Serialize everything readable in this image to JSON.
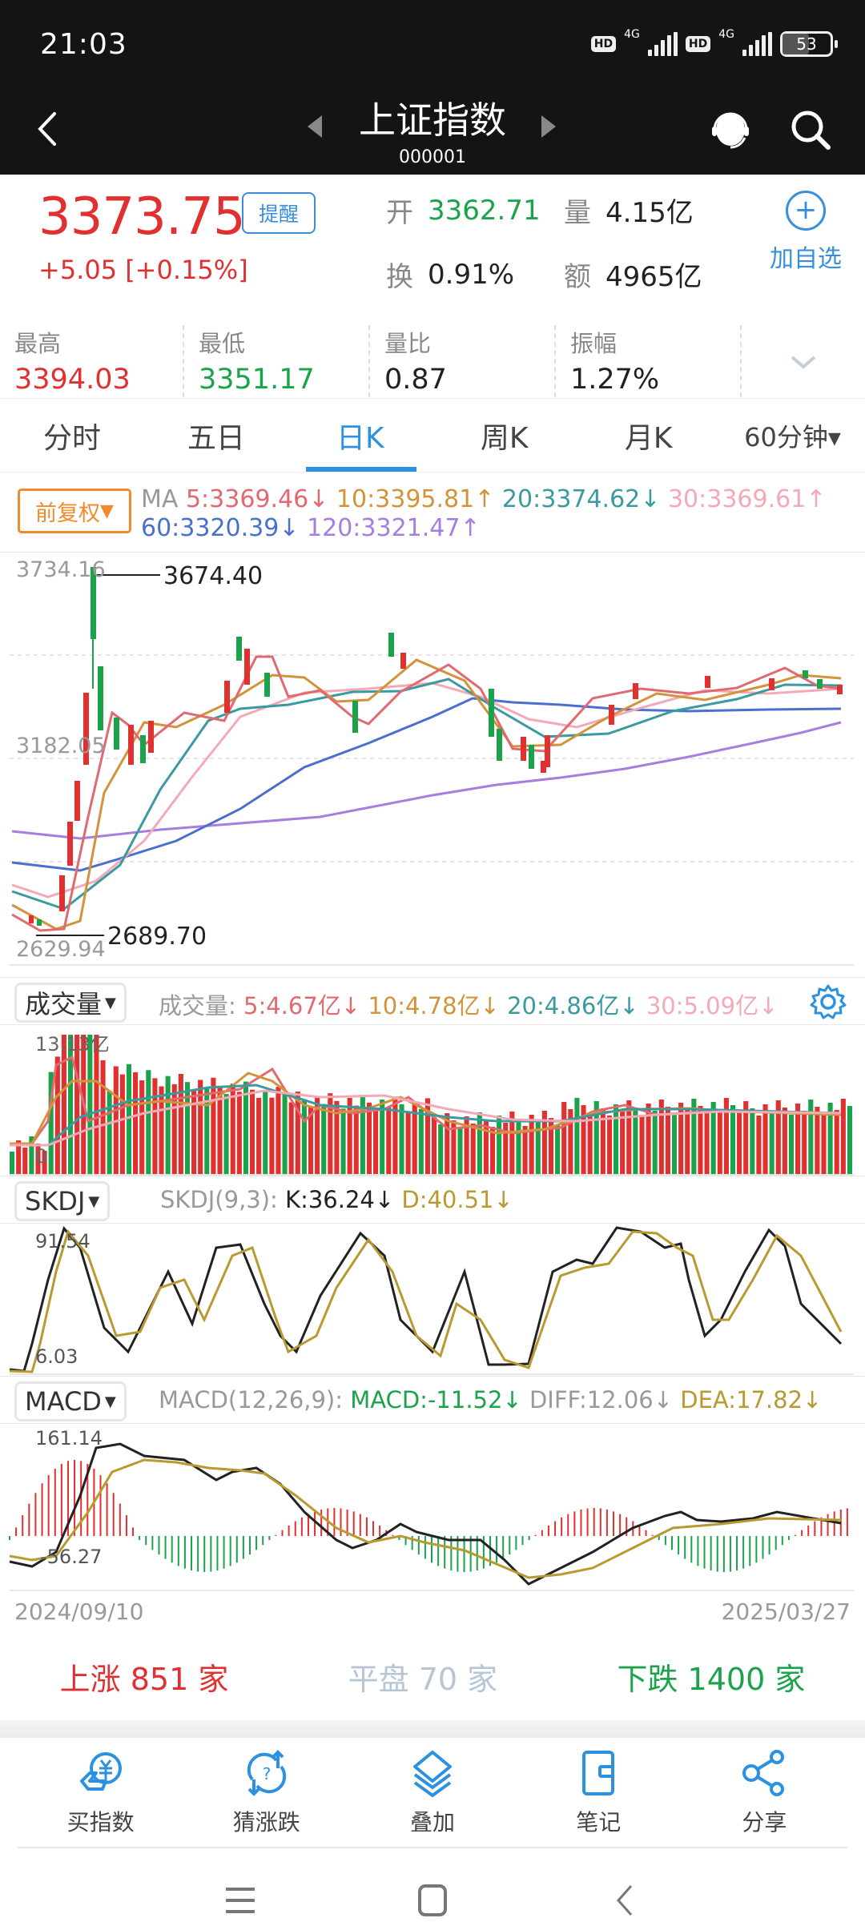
{
  "status_bar": {
    "time": "21:03",
    "sim1": "4G",
    "sim2": "4G",
    "hd1": "HD",
    "hd2": "HD",
    "battery": "53"
  },
  "header": {
    "title": "上证指数",
    "code": "000001",
    "back_icon": "chevron-left-icon",
    "service_icon": "customer-service-icon",
    "search_icon": "search-icon"
  },
  "quote": {
    "price": "3373.75",
    "change": "+5.05 [+0.15%]",
    "alert_label": "提醒",
    "open_label": "开",
    "open_value": "3362.71",
    "volume_label": "量",
    "volume_value": "4.15亿",
    "turnover_label": "换",
    "turnover_value": "0.91%",
    "amount_label": "额",
    "amount_value": "4965亿",
    "add_fav_label": "加自选"
  },
  "stats": [
    {
      "label": "最高",
      "value": "3394.03",
      "color": "#e03030"
    },
    {
      "label": "最低",
      "value": "3351.17",
      "color": "#1aa34a"
    },
    {
      "label": "量比",
      "value": "0.87",
      "color": "#222"
    },
    {
      "label": "振幅",
      "value": "1.27%",
      "color": "#222"
    }
  ],
  "tabs": [
    {
      "label": "分时"
    },
    {
      "label": "五日"
    },
    {
      "label": "日K",
      "active": true
    },
    {
      "label": "周K"
    },
    {
      "label": "月K"
    },
    {
      "label": "60分钟▾"
    }
  ],
  "ma": {
    "adjust_label": "前复权",
    "prefix": "MA",
    "items": [
      {
        "text": "5:3369.46↓",
        "color": "#e06a70"
      },
      {
        "text": "10:3395.81↑",
        "color": "#d4923a"
      },
      {
        "text": "20:3374.62↓",
        "color": "#3a9aa0"
      },
      {
        "text": "30:3369.61↑",
        "color": "#f4a9b6"
      },
      {
        "text": "60:3320.39↓",
        "color": "#4a6fcf"
      },
      {
        "text": "120:3321.47↑",
        "color": "#a77ee0"
      }
    ]
  },
  "main_chart": {
    "y_top": "3734.16",
    "y_mid": "3182.05",
    "y_bottom": "2629.94",
    "max_annot": "3674.40",
    "min_annot": "2689.70"
  },
  "volume": {
    "selector": "成交量",
    "prefix": "成交量:",
    "items": [
      {
        "text": "5:4.67亿↓",
        "color": "#e06a70"
      },
      {
        "text": "10:4.78亿↓",
        "color": "#d4923a"
      },
      {
        "text": "20:4.86亿↓",
        "color": "#3a9aa0"
      },
      {
        "text": "30:5.09亿↓",
        "color": "#f4a9b6"
      }
    ],
    "y_top": "13.13亿",
    "y_bottom": "0",
    "settings_icon": "gear-icon"
  },
  "skdj": {
    "selector": "SKDJ",
    "prefix": "SKDJ(9,3):",
    "k": "K:36.24↓",
    "d": "D:40.51↓",
    "y_top": "91.54",
    "y_bottom": "6.03"
  },
  "macd": {
    "selector": "MACD",
    "prefix": "MACD(12,26,9):",
    "macd": "MACD:-11.52↓",
    "diff": "DIFF:12.06↓",
    "dea": "DEA:17.82↓",
    "y_top": "161.14",
    "y_bottom": "-56.27"
  },
  "dates": {
    "start": "2024/09/10",
    "end": "2025/03/27"
  },
  "breadth": {
    "up": "上涨 851 家",
    "flat": "平盘 70 家",
    "down": "下跌 1400 家"
  },
  "actions": [
    {
      "label": "买指数",
      "icon": "buy-index-icon"
    },
    {
      "label": "猜涨跌",
      "icon": "guess-icon"
    },
    {
      "label": "叠加",
      "icon": "layers-icon"
    },
    {
      "label": "笔记",
      "icon": "notebook-icon"
    },
    {
      "label": "分享",
      "icon": "share-icon"
    }
  ],
  "colors": {
    "up": "#e03030",
    "down": "#1aa34a",
    "accent": "#2b91e0",
    "k_line": "#222222",
    "d_line": "#b89a30"
  },
  "chart_data": [
    {
      "type": "candlestick",
      "title": "上证指数 日K",
      "x_range": [
        "2024/09/10",
        "2025/03/27"
      ],
      "ylim": [
        2629.94,
        3734.16
      ],
      "y_ticks": [
        3734.16,
        3182.05,
        2629.94
      ],
      "annotations": [
        {
          "label": "max",
          "value": 3674.4
        },
        {
          "label": "min",
          "value": 2689.7
        }
      ],
      "series": [
        {
          "name": "MA5",
          "last": 3369.46
        },
        {
          "name": "MA10",
          "last": 3395.81
        },
        {
          "name": "MA20",
          "last": 3374.62
        },
        {
          "name": "MA30",
          "last": 3369.61
        },
        {
          "name": "MA60",
          "last": 3320.39
        },
        {
          "name": "MA120",
          "last": 3321.47
        }
      ]
    },
    {
      "type": "bar",
      "title": "成交量",
      "ylim": [
        0,
        13.13
      ],
      "unit": "亿",
      "series": [
        {
          "name": "MA5",
          "last": 4.67
        },
        {
          "name": "MA10",
          "last": 4.78
        },
        {
          "name": "MA20",
          "last": 4.86
        },
        {
          "name": "MA30",
          "last": 5.09
        }
      ]
    },
    {
      "type": "line",
      "title": "SKDJ(9,3)",
      "ylim": [
        6.03,
        91.54
      ],
      "series": [
        {
          "name": "K",
          "last": 36.24
        },
        {
          "name": "D",
          "last": 40.51
        }
      ]
    },
    {
      "type": "bar",
      "title": "MACD(12,26,9)",
      "ylim": [
        -56.27,
        161.14
      ],
      "series": [
        {
          "name": "MACD",
          "last": -11.52
        },
        {
          "name": "DIFF",
          "last": 12.06
        },
        {
          "name": "DEA",
          "last": 17.82
        }
      ]
    }
  ]
}
